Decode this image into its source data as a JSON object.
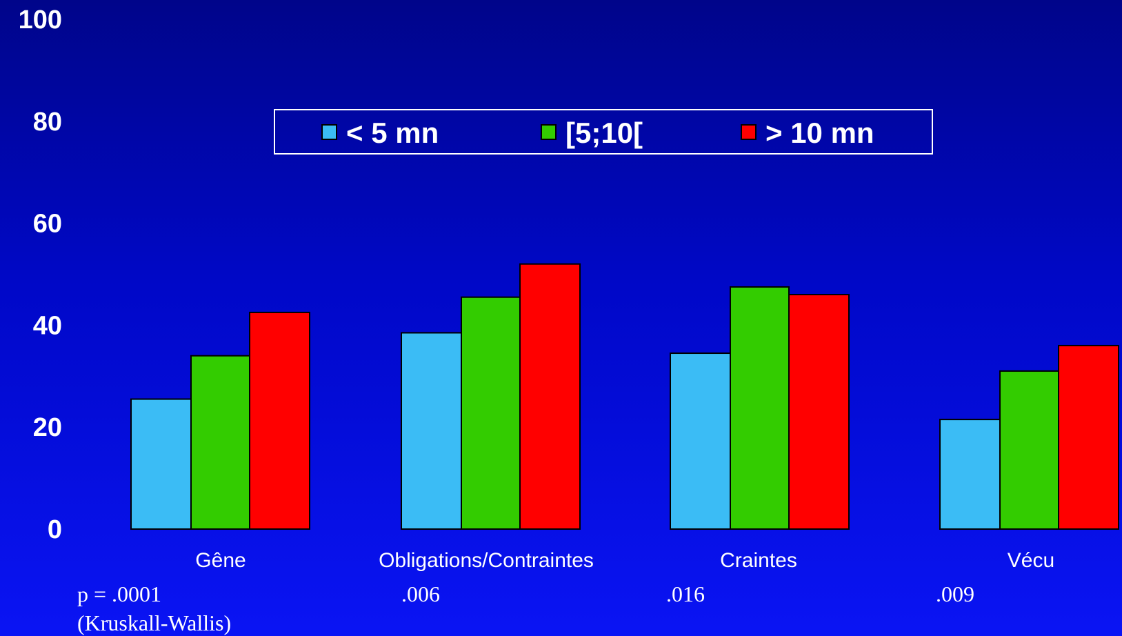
{
  "chart_data": {
    "type": "bar",
    "title": "",
    "xlabel": "",
    "ylabel": "",
    "ylim": [
      0,
      100
    ],
    "yticks": [
      0,
      20,
      40,
      60,
      80,
      100
    ],
    "grid": false,
    "legend_position": "top-center",
    "categories": [
      "Gêne",
      "Obligations/Contraintes",
      "Craintes",
      "Vécu"
    ],
    "series": [
      {
        "name": "< 5 mn",
        "color": "#3bbcf5",
        "values": [
          25.5,
          38.5,
          34.5,
          21.5
        ]
      },
      {
        "name": "[5;10[",
        "color": "#33cc00",
        "values": [
          34,
          45.5,
          47.5,
          31
        ]
      },
      {
        "name": "> 10 mn",
        "color": "#ff0000",
        "values": [
          42.5,
          52,
          46,
          36
        ]
      }
    ],
    "annotations": {
      "p_values": [
        "p = .0001",
        ".006",
        ".016",
        ".009"
      ],
      "test_note": "(Kruskall-Wallis)"
    }
  }
}
